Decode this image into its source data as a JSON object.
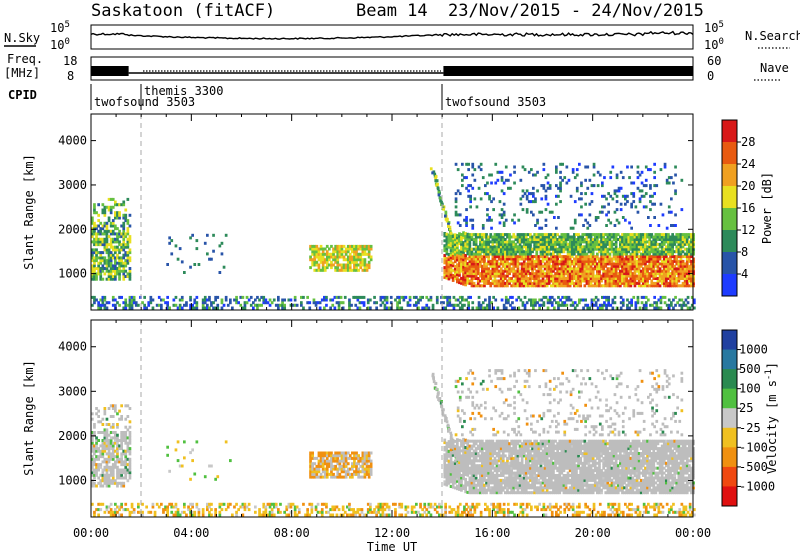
{
  "header": {
    "station": "Saskatoon (fitACF)",
    "beam": "Beam 14",
    "date_range": "23/Nov/2015 - 24/Nov/2015"
  },
  "strip_labels": {
    "nsky": "N.Sky",
    "freq_line1": "Freq.",
    "freq_line2": "[MHz]",
    "cpid": "CPID",
    "nsearch": "N.Search",
    "nave": "Nave"
  },
  "noise_axis": {
    "left_top": "10^5",
    "left_bottom": "10^0",
    "right_top": "10^5",
    "right_bottom": "10^0"
  },
  "freq_axis": {
    "left_ticks": [
      "18",
      "8"
    ],
    "right_ticks": [
      "60",
      "0"
    ]
  },
  "cpid_segments": [
    {
      "label": "twofsound 3503",
      "start_hour": 0.0
    },
    {
      "label": "themis 3300",
      "start_hour": 1.55
    },
    {
      "label": "twofsound 3503",
      "start_hour": 14.0
    }
  ],
  "x_axis": {
    "title": "Time UT",
    "ticks": [
      "00:00",
      "04:00",
      "08:00",
      "12:00",
      "16:00",
      "20:00",
      "00:00"
    ]
  },
  "panels": {
    "power": {
      "ylabel": "Slant Range [km]",
      "yticks": [
        "1000",
        "2000",
        "3000",
        "4000"
      ],
      "colorbar_label": "Power [dB]",
      "colorbar_ticks": [
        "4",
        "8",
        "12",
        "16",
        "20",
        "24",
        "28"
      ]
    },
    "velocity": {
      "ylabel": "Slant Range [km]",
      "yticks": [
        "1000",
        "2000",
        "3000",
        "4000"
      ],
      "colorbar_label": "Velocity [m s^-1]",
      "colorbar_ticks": [
        "1000",
        "500",
        "100",
        "25",
        "-25",
        "-100",
        "-500",
        "-1000"
      ]
    }
  },
  "colors": {
    "power_scale": [
      "#1e3cff",
      "#2854a8",
      "#2d8a5a",
      "#66c040",
      "#e8e020",
      "#f0a020",
      "#e85a10",
      "#d81818"
    ],
    "velocity_scale": [
      "#2040a0",
      "#2878a0",
      "#2a8a50",
      "#50c040",
      "#c8c8c8",
      "#f0c020",
      "#f09010",
      "#f04810",
      "#e01010"
    ],
    "ground_scatter": "#bdbdbd"
  },
  "chart_data": [
    {
      "type": "heatmap",
      "title": "Power [dB]",
      "xlabel": "Time UT",
      "ylabel": "Slant Range [km]",
      "xlim": [
        0,
        24
      ],
      "ylim": [
        180,
        4600
      ],
      "x_ticks_hours": [
        0,
        4,
        8,
        12,
        16,
        20,
        24
      ],
      "y_ticks": [
        1000,
        2000,
        3000,
        4000
      ],
      "color_range": [
        0,
        32
      ],
      "echo_regions": [
        {
          "t_start": 0.0,
          "t_end": 1.5,
          "r_min": 800,
          "r_max": 2800,
          "mean_power_db": 14
        },
        {
          "t_start": 8.7,
          "t_end": 11.2,
          "r_min": 1050,
          "r_max": 1650,
          "mean_power_db": 20
        },
        {
          "t_start": 14.0,
          "t_end": 24.0,
          "r_min": 700,
          "r_max": 1900,
          "mean_power_db": 22
        },
        {
          "t_start": 14.5,
          "t_end": 23.5,
          "r_min": 2000,
          "r_max": 3500,
          "mean_power_db": 8
        },
        {
          "t_start": 0.0,
          "t_end": 24.0,
          "r_min": 180,
          "r_max": 500,
          "mean_power_db": 6
        }
      ]
    },
    {
      "type": "heatmap",
      "title": "Velocity [m s^-1]",
      "xlabel": "Time UT",
      "ylabel": "Slant Range [km]",
      "xlim": [
        0,
        24
      ],
      "ylim": [
        180,
        4600
      ],
      "x_ticks_hours": [
        0,
        4,
        8,
        12,
        16,
        20,
        24
      ],
      "y_ticks": [
        1000,
        2000,
        3000,
        4000
      ],
      "color_range": [
        -1000,
        1000
      ],
      "echo_regions": [
        {
          "t_start": 0.0,
          "t_end": 1.5,
          "r_min": 800,
          "r_max": 2800,
          "mean_velocity": 25,
          "ground_scatter": true
        },
        {
          "t_start": 8.7,
          "t_end": 11.2,
          "r_min": 1050,
          "r_max": 1650,
          "mean_velocity": -100
        },
        {
          "t_start": 14.0,
          "t_end": 24.0,
          "r_min": 700,
          "r_max": 1900,
          "mean_velocity": 0,
          "ground_scatter": true
        },
        {
          "t_start": 14.5,
          "t_end": 23.5,
          "r_min": 2000,
          "r_max": 3500,
          "mean_velocity": 0,
          "ground_scatter": true
        },
        {
          "t_start": 0.0,
          "t_end": 24.0,
          "r_min": 180,
          "r_max": 500,
          "mean_velocity": -100
        }
      ]
    }
  ]
}
